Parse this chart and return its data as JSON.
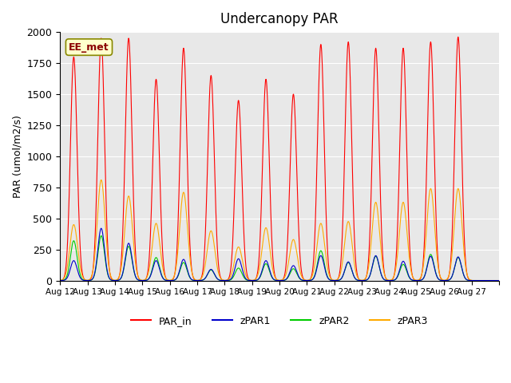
{
  "title": "Undercanopy PAR",
  "ylabel": "PAR (umol/m2/s)",
  "xlabel": "",
  "annotation": "EE_met",
  "ylim": [
    0,
    2000
  ],
  "background_color": "#e8e8e8",
  "colors": {
    "PAR_in": "#ff0000",
    "zPAR1": "#0000cc",
    "zPAR2": "#00cc00",
    "zPAR3": "#ffaa00"
  },
  "xtick_labels": [
    "Aug 12",
    "Aug 13",
    "Aug 14",
    "Aug 15",
    "Aug 16",
    "Aug 17",
    "Aug 18",
    "Aug 19",
    "Aug 20",
    "Aug 21",
    "Aug 22",
    "Aug 23",
    "Aug 24",
    "Aug 25",
    "Aug 26",
    "Aug 27"
  ],
  "day_peaks_PAR_in": [
    1800,
    1950,
    1950,
    1620,
    1870,
    1650,
    1450,
    1620,
    1500,
    1900,
    1920,
    1870,
    1870,
    1920,
    1960,
    0
  ],
  "day_peaks_zPAR1": [
    160,
    420,
    300,
    160,
    170,
    90,
    175,
    160,
    120,
    200,
    150,
    200,
    155,
    195,
    190,
    0
  ],
  "day_peaks_zPAR2": [
    320,
    360,
    275,
    185,
    145,
    85,
    100,
    135,
    95,
    240,
    145,
    195,
    130,
    210,
    185,
    0
  ],
  "day_peaks_zPAR3": [
    450,
    810,
    680,
    460,
    710,
    400,
    270,
    425,
    330,
    460,
    475,
    630,
    630,
    740,
    740,
    0
  ],
  "n_days": 16,
  "pts_per_day": 96
}
